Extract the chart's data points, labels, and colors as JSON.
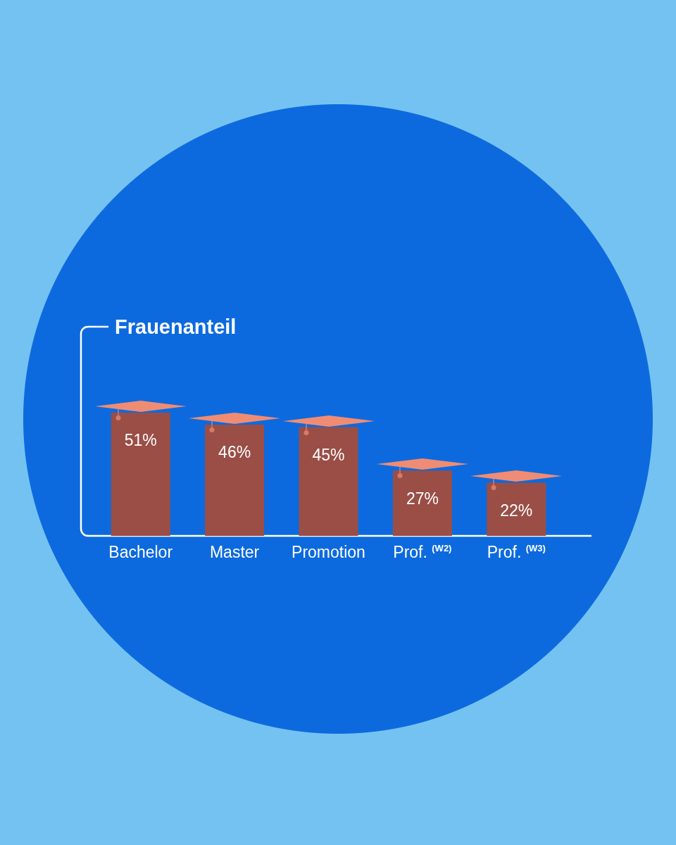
{
  "chart_data": {
    "type": "bar",
    "title": "Frauenanteil",
    "categories": [
      "Bachelor",
      "Master",
      "Promotion",
      "Prof. $^{(W2)}$",
      "Prof. $^{(W3)}$"
    ],
    "values": [
      51,
      46,
      45,
      27,
      22
    ],
    "value_labels": [
      "51%",
      "46%",
      "45%",
      "27%",
      "22%"
    ],
    "color": "#9a4e46",
    "tick_labels": "x"
  }
}
